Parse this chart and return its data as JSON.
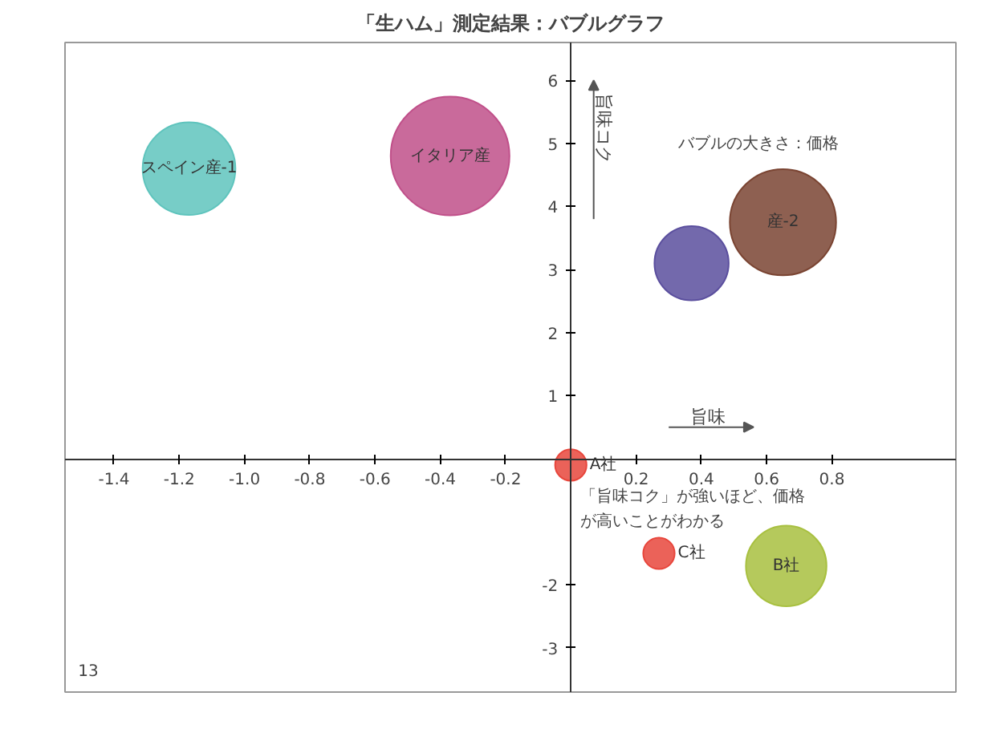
{
  "chart_data": {
    "type": "bubble",
    "title": "「生ハム」測定結果：バブルグラフ",
    "xlabel": "旨味",
    "ylabel": "旨味コク",
    "series": [
      {
        "name": "スペイン産-1",
        "color": "#5fc4bd",
        "x": [
          -1.17
        ],
        "values": [
          4.6
        ],
        "sizes": [
          0.61
        ]
      },
      {
        "name": "イタリア産",
        "color": "#c0508a",
        "x": [
          -0.37
        ],
        "values": [
          4.8
        ],
        "sizes": [
          1
        ]
      },
      {
        "color": "#5b4f9e",
        "x": [
          0.37
        ],
        "values": [
          3.1
        ],
        "sizes": [
          0.39
        ]
      },
      {
        "name": "産-2",
        "color": "#7a4432",
        "x": [
          0.65
        ],
        "values": [
          3.75
        ],
        "sizes": [
          0.8
        ]
      },
      {
        "name": "A社",
        "color": "#e8463c",
        "x": [
          0.0
        ],
        "values": [
          -0.1
        ],
        "sizes": [
          0.07
        ]
      },
      {
        "name": "C社",
        "color": "#e8463c",
        "x": [
          0.27
        ],
        "values": [
          -1.5
        ],
        "sizes": [
          0.07
        ]
      },
      {
        "name": "B社",
        "color": "#a8c040",
        "x": [
          0.66
        ],
        "values": [
          -1.7
        ],
        "sizes": [
          0.46
        ]
      }
    ],
    "xlim": [
      -1.55,
      1.18
    ],
    "ylim": [
      -3.7,
      6.6
    ],
    "xticks": [
      -1.4,
      -1.2,
      {
        "value": -1.0,
        "label": "-1.0"
      },
      -0.8,
      -0.6,
      -0.4,
      -0.2,
      0.2,
      0.4,
      0.6,
      0.8
    ],
    "yticks": [
      -3,
      -2,
      1,
      2,
      3,
      4,
      5,
      6
    ],
    "grid": false,
    "annotations": [
      "バブルの大きさ：価格",
      "「旨味コク」が強いほど、価格が高いことがわかる",
      "13"
    ]
  }
}
